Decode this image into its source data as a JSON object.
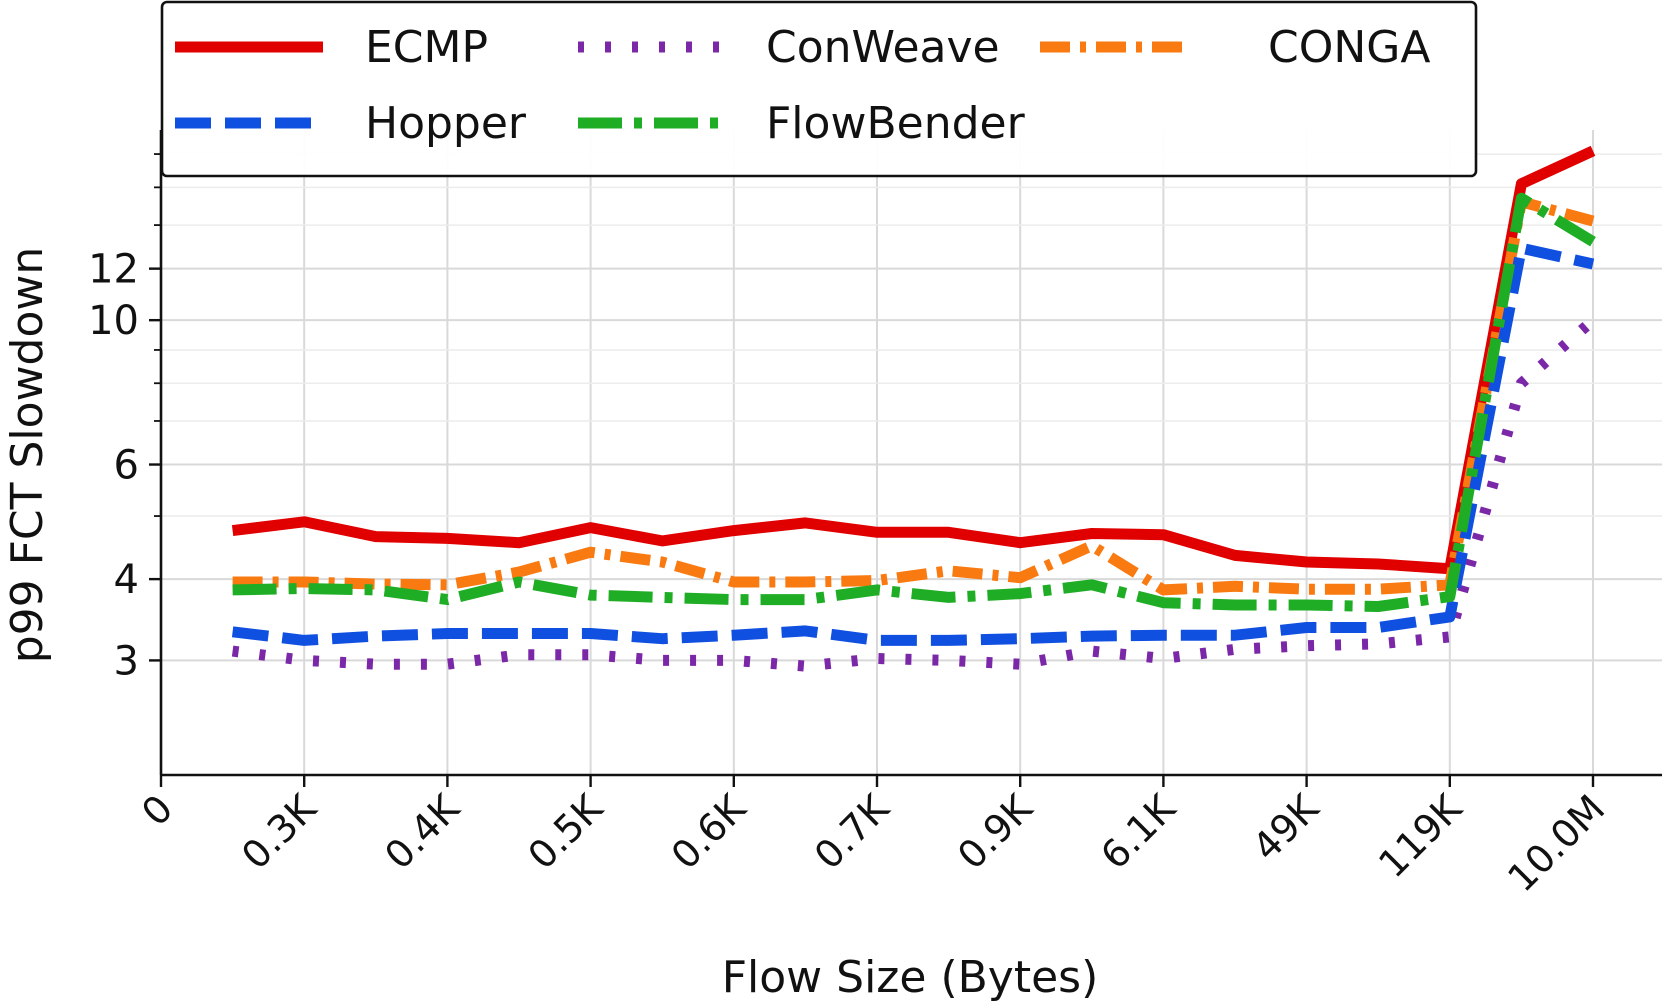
{
  "chart_data": {
    "type": "line",
    "xlabel": "Flow Size (Bytes)",
    "ylabel": "p99 FCT Slowdown",
    "y_scale": "log",
    "ylim": [
      2.0,
      19.6
    ],
    "xlim": [
      0,
      21
    ],
    "x_ticks": [
      {
        "x": 0,
        "label": "0"
      },
      {
        "x": 2,
        "label": "0.3K"
      },
      {
        "x": 4,
        "label": "0.4K"
      },
      {
        "x": 6,
        "label": "0.5K"
      },
      {
        "x": 8,
        "label": "0.6K"
      },
      {
        "x": 10,
        "label": "0.7K"
      },
      {
        "x": 12,
        "label": "0.9K"
      },
      {
        "x": 14,
        "label": "6.1K"
      },
      {
        "x": 16,
        "label": "49K"
      },
      {
        "x": 18,
        "label": "119K"
      },
      {
        "x": 20,
        "label": "10.0M"
      }
    ],
    "y_ticks": [
      {
        "y": 3,
        "label": "3"
      },
      {
        "y": 4,
        "label": "4"
      },
      {
        "y": 6,
        "label": "6"
      },
      {
        "y": 10,
        "label": "10"
      },
      {
        "y": 12,
        "label": "12"
      }
    ],
    "y_minor_ticks": [
      5,
      7,
      8,
      9,
      14,
      16,
      18
    ],
    "x": [
      1,
      2,
      3,
      4,
      5,
      6,
      7,
      8,
      9,
      10,
      11,
      12,
      13,
      14,
      15,
      16,
      17,
      18,
      19,
      20
    ],
    "series": [
      {
        "name": "ECMP",
        "color": "#e00000",
        "dash": "solid",
        "values": [
          4.75,
          4.9,
          4.65,
          4.62,
          4.55,
          4.8,
          4.58,
          4.75,
          4.88,
          4.72,
          4.72,
          4.55,
          4.7,
          4.68,
          4.35,
          4.25,
          4.22,
          4.15,
          16.2,
          18.2
        ]
      },
      {
        "name": "ConWeave",
        "color": "#7b28a8",
        "dash": "dotted",
        "values": [
          3.1,
          3.0,
          2.96,
          2.96,
          3.06,
          3.06,
          3.0,
          3.0,
          2.94,
          3.02,
          3.0,
          2.96,
          3.1,
          3.02,
          3.12,
          3.16,
          3.18,
          3.26,
          8.0,
          10.0
        ]
      },
      {
        "name": "CONGA",
        "color": "#f97a10",
        "dash": "dashdot",
        "values": [
          3.96,
          3.96,
          3.93,
          3.92,
          4.1,
          4.4,
          4.25,
          3.96,
          3.96,
          3.98,
          4.12,
          4.02,
          4.5,
          3.85,
          3.9,
          3.86,
          3.86,
          3.92,
          15.2,
          14.2
        ]
      },
      {
        "name": "Hopper",
        "color": "#1050e0",
        "dash": "dashed",
        "values": [
          3.32,
          3.22,
          3.27,
          3.3,
          3.3,
          3.3,
          3.24,
          3.28,
          3.33,
          3.22,
          3.22,
          3.24,
          3.27,
          3.28,
          3.28,
          3.37,
          3.37,
          3.5,
          12.9,
          12.2
        ]
      },
      {
        "name": "FlowBender",
        "color": "#1fad26",
        "dash": "dashdot2",
        "values": [
          3.85,
          3.87,
          3.85,
          3.72,
          3.96,
          3.78,
          3.75,
          3.72,
          3.72,
          3.85,
          3.75,
          3.8,
          3.92,
          3.68,
          3.65,
          3.65,
          3.63,
          3.76,
          15.4,
          13.2
        ]
      }
    ],
    "legend": {
      "position": "top-left",
      "columns": 3,
      "order": [
        "ECMP",
        "ConWeave",
        "CONGA",
        "Hopper",
        "FlowBender"
      ]
    },
    "grid": true
  }
}
